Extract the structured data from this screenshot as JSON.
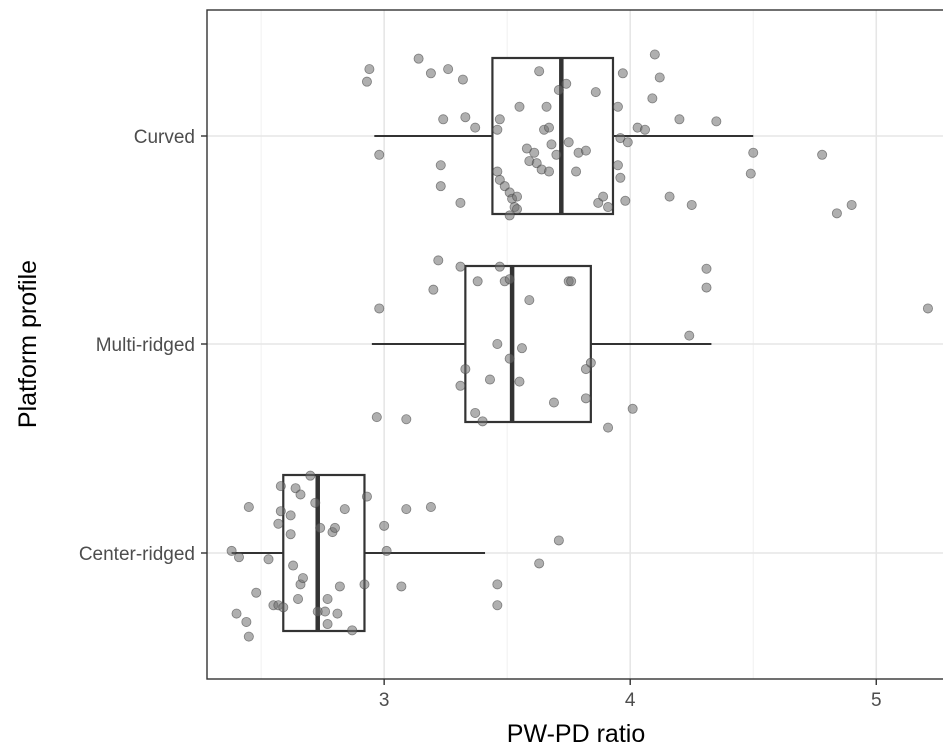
{
  "chart_data": {
    "type": "box",
    "orientation": "horizontal",
    "xlabel": "PW-PD ratio",
    "ylabel": "Platform profile",
    "xlim": [
      2.28,
      5.32
    ],
    "x_ticks": [
      3,
      4,
      5
    ],
    "x_tick_labels": [
      "3",
      "4",
      "5"
    ],
    "grid": true,
    "categories": [
      "Center-ridged",
      "Multi-ridged",
      "Curved"
    ],
    "boxes": [
      {
        "category": "Center-ridged",
        "whisker_low": 2.38,
        "q1": 2.59,
        "median": 2.73,
        "q3": 2.92,
        "whisker_high": 3.41
      },
      {
        "category": "Multi-ridged",
        "whisker_low": 2.95,
        "q1": 3.33,
        "median": 3.52,
        "q3": 3.84,
        "whisker_high": 4.33
      },
      {
        "category": "Curved",
        "whisker_low": 2.96,
        "q1": 3.44,
        "median": 3.72,
        "q3": 3.93,
        "whisker_high": 4.5
      }
    ],
    "points": {
      "Center-ridged": [
        [
          2.45,
          0.4
        ],
        [
          2.44,
          0.33
        ],
        [
          2.4,
          0.29
        ],
        [
          2.48,
          0.19
        ],
        [
          2.55,
          0.25
        ],
        [
          2.57,
          0.25
        ],
        [
          2.41,
          0.02
        ],
        [
          2.38,
          -0.01
        ],
        [
          2.45,
          -0.22
        ],
        [
          2.53,
          0.03
        ],
        [
          2.57,
          -0.14
        ],
        [
          2.59,
          0.26
        ],
        [
          2.58,
          -0.2
        ],
        [
          2.58,
          -0.32
        ],
        [
          2.62,
          -0.09
        ],
        [
          2.62,
          -0.18
        ],
        [
          2.63,
          0.06
        ],
        [
          2.64,
          -0.31
        ],
        [
          2.66,
          -0.28
        ],
        [
          2.65,
          0.22
        ],
        [
          2.66,
          0.15
        ],
        [
          2.67,
          0.12
        ],
        [
          2.7,
          -0.37
        ],
        [
          2.72,
          -0.24
        ],
        [
          2.73,
          0.28
        ],
        [
          2.74,
          -0.12
        ],
        [
          2.76,
          0.28
        ],
        [
          2.77,
          0.22
        ],
        [
          2.77,
          0.34
        ],
        [
          2.79,
          -0.1
        ],
        [
          2.8,
          -0.12
        ],
        [
          2.81,
          0.29
        ],
        [
          2.84,
          -0.21
        ],
        [
          2.82,
          0.16
        ],
        [
          2.87,
          0.37
        ],
        [
          2.92,
          0.15
        ],
        [
          3.07,
          0.16
        ],
        [
          2.93,
          -0.27
        ],
        [
          3.01,
          -0.01
        ],
        [
          3.0,
          -0.13
        ],
        [
          3.09,
          -0.21
        ],
        [
          3.19,
          -0.22
        ],
        [
          3.46,
          0.25
        ],
        [
          3.46,
          0.15
        ],
        [
          3.63,
          0.05
        ],
        [
          3.71,
          -0.06
        ]
      ],
      "Multi-ridged": [
        [
          2.97,
          0.35
        ],
        [
          3.09,
          0.36
        ],
        [
          2.98,
          -0.17
        ],
        [
          3.2,
          -0.26
        ],
        [
          3.22,
          -0.4
        ],
        [
          3.31,
          0.2
        ],
        [
          3.31,
          -0.37
        ],
        [
          3.33,
          0.12
        ],
        [
          3.37,
          0.33
        ],
        [
          3.4,
          0.37
        ],
        [
          3.38,
          -0.3
        ],
        [
          3.43,
          0.17
        ],
        [
          3.46,
          0.0
        ],
        [
          3.47,
          -0.37
        ],
        [
          3.49,
          -0.3
        ],
        [
          3.51,
          0.07
        ],
        [
          3.51,
          -0.31
        ],
        [
          3.55,
          0.18
        ],
        [
          3.56,
          0.02
        ],
        [
          3.59,
          -0.21
        ],
        [
          3.69,
          0.28
        ],
        [
          3.75,
          -0.3
        ],
        [
          3.76,
          -0.3
        ],
        [
          3.82,
          0.26
        ],
        [
          3.82,
          0.12
        ],
        [
          3.84,
          0.09
        ],
        [
          3.91,
          0.4
        ],
        [
          4.01,
          0.31
        ],
        [
          4.24,
          -0.04
        ],
        [
          4.31,
          -0.27
        ],
        [
          4.31,
          -0.36
        ],
        [
          5.21,
          -0.17
        ]
      ],
      "Curved": [
        [
          2.98,
          0.09
        ],
        [
          2.93,
          -0.26
        ],
        [
          2.94,
          -0.32
        ],
        [
          3.14,
          -0.37
        ],
        [
          3.19,
          -0.3
        ],
        [
          3.23,
          0.24
        ],
        [
          3.23,
          0.14
        ],
        [
          3.24,
          -0.08
        ],
        [
          3.26,
          -0.32
        ],
        [
          3.31,
          0.32
        ],
        [
          3.32,
          -0.27
        ],
        [
          3.33,
          -0.09
        ],
        [
          3.37,
          -0.04
        ],
        [
          3.46,
          0.17
        ],
        [
          3.47,
          0.21
        ],
        [
          3.46,
          -0.03
        ],
        [
          3.47,
          -0.08
        ],
        [
          3.49,
          0.24
        ],
        [
          3.51,
          0.27
        ],
        [
          3.51,
          0.38
        ],
        [
          3.52,
          0.3
        ],
        [
          3.53,
          0.34
        ],
        [
          3.54,
          0.29
        ],
        [
          3.54,
          0.35
        ],
        [
          3.55,
          -0.14
        ],
        [
          3.58,
          0.06
        ],
        [
          3.59,
          0.12
        ],
        [
          3.61,
          0.08
        ],
        [
          3.62,
          0.13
        ],
        [
          3.63,
          -0.31
        ],
        [
          3.64,
          0.16
        ],
        [
          3.65,
          -0.03
        ],
        [
          3.66,
          -0.14
        ],
        [
          3.67,
          0.17
        ],
        [
          3.67,
          -0.04
        ],
        [
          3.68,
          0.04
        ],
        [
          3.7,
          0.09
        ],
        [
          3.71,
          -0.22
        ],
        [
          3.74,
          -0.25
        ],
        [
          3.75,
          0.03
        ],
        [
          3.78,
          0.17
        ],
        [
          3.79,
          0.08
        ],
        [
          3.82,
          0.07
        ],
        [
          3.86,
          -0.21
        ],
        [
          3.87,
          0.32
        ],
        [
          3.89,
          0.29
        ],
        [
          3.91,
          0.34
        ],
        [
          3.95,
          0.14
        ],
        [
          3.95,
          -0.14
        ],
        [
          3.96,
          0.2
        ],
        [
          3.96,
          0.01
        ],
        [
          3.97,
          -0.3
        ],
        [
          3.98,
          0.31
        ],
        [
          3.99,
          0.03
        ],
        [
          4.03,
          -0.04
        ],
        [
          4.06,
          -0.03
        ],
        [
          4.09,
          -0.18
        ],
        [
          4.1,
          -0.39
        ],
        [
          4.12,
          -0.28
        ],
        [
          4.16,
          0.29
        ],
        [
          4.2,
          -0.08
        ],
        [
          4.25,
          0.33
        ],
        [
          4.35,
          -0.07
        ],
        [
          4.49,
          0.18
        ],
        [
          4.5,
          0.08
        ],
        [
          4.78,
          0.09
        ],
        [
          4.84,
          0.37
        ],
        [
          4.9,
          0.33
        ]
      ]
    }
  }
}
